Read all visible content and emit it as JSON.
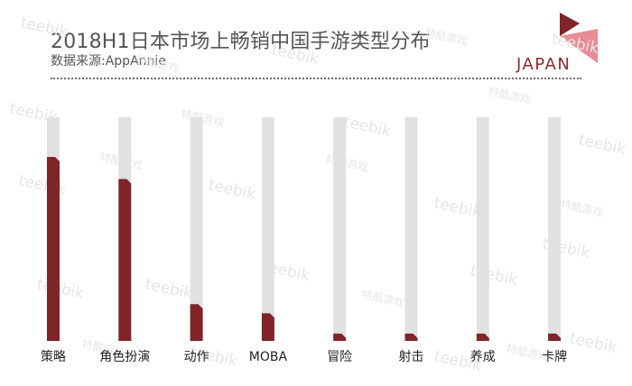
{
  "header": {
    "title": "2018H1日本市场上畅销中国手游类型分布",
    "source": "数据来源:AppAnnie",
    "region": "JAPAN"
  },
  "colors": {
    "bar_fill": "#7f2428",
    "track_fill": "#e1e1e1",
    "accent": "#e98b96"
  },
  "watermarks": [
    "teebik",
    "特酷游戏"
  ],
  "chart_data": {
    "type": "bar",
    "categories": [
      "策略",
      "角色扮演",
      "动作",
      "MOBA",
      "冒险",
      "射击",
      "养成",
      "卡牌"
    ],
    "values": [
      100,
      88,
      20,
      15,
      4,
      4,
      4,
      4
    ],
    "ylim": [
      0,
      100
    ],
    "grid": false,
    "legend": "none",
    "axis_ticks": false
  }
}
